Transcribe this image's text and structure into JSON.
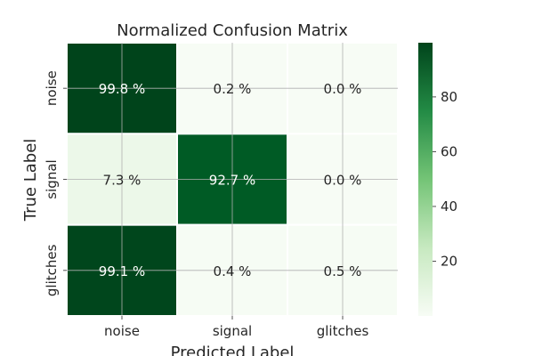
{
  "chart_data": {
    "type": "heatmap",
    "title": "Normalized Confusion Matrix",
    "xlabel": "Predicted Label",
    "ylabel": "True Label",
    "x_categories": [
      "noise",
      "signal",
      "glitches"
    ],
    "y_categories": [
      "noise",
      "signal",
      "glitches"
    ],
    "values": [
      [
        99.8,
        0.2,
        0.0
      ],
      [
        7.3,
        92.7,
        0.0
      ],
      [
        99.1,
        0.4,
        0.5
      ]
    ],
    "cell_labels": [
      [
        "99.8 %",
        "0.2 %",
        "0.0 %"
      ],
      [
        "7.3 %",
        "92.7 %",
        "0.0 %"
      ],
      [
        "99.1 %",
        "0.4 %",
        "0.5 %"
      ]
    ],
    "colorscale": "Greens",
    "color_range": [
      0,
      99.8
    ],
    "colorbar_ticks": [
      {
        "value": 20,
        "label": "20"
      },
      {
        "value": 40,
        "label": "40"
      },
      {
        "value": 60,
        "label": "60"
      },
      {
        "value": 80,
        "label": "80"
      }
    ],
    "grid": true
  }
}
